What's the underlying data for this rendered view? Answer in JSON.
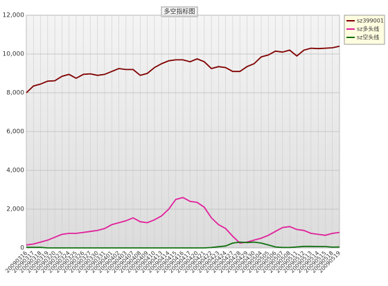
{
  "chart_data": {
    "type": "line",
    "title": "多空指标图",
    "categories": [
      "20090316",
      "20090317",
      "20090318",
      "20090319",
      "20090320",
      "20090323",
      "20090324",
      "20090325",
      "20090326",
      "20090327",
      "20090330",
      "20090331",
      "20090401",
      "20090402",
      "20090403",
      "20090407",
      "20090408",
      "20090409",
      "20090410",
      "20090413",
      "20090414",
      "20090415",
      "20090416",
      "20090417",
      "20090420",
      "20090421",
      "20090422",
      "20090423",
      "20090424",
      "20090427",
      "20090428",
      "20090429",
      "20090430",
      "20090504",
      "20090505",
      "20090506",
      "20090507",
      "20090508",
      "20090511",
      "20090512",
      "20090513",
      "20090514",
      "20090515",
      "20090518",
      "20090519"
    ],
    "series": [
      {
        "name": "sz399001",
        "color": "#800000",
        "values": [
          8000,
          8350,
          8450,
          8600,
          8620,
          8850,
          8950,
          8750,
          8950,
          8980,
          8900,
          8950,
          9100,
          9250,
          9200,
          9200,
          8900,
          9000,
          9300,
          9500,
          9650,
          9700,
          9700,
          9600,
          9750,
          9600,
          9250,
          9350,
          9300,
          9100,
          9100,
          9350,
          9500,
          9850,
          9950,
          10150,
          10100,
          10200,
          9900,
          10200,
          10300,
          10280,
          10300,
          10320,
          10400
        ]
      },
      {
        "name": "sz多头线",
        "color": "#e0209a",
        "values": [
          150,
          200,
          300,
          400,
          550,
          700,
          750,
          750,
          800,
          850,
          900,
          1000,
          1200,
          1300,
          1400,
          1550,
          1350,
          1300,
          1450,
          1650,
          2000,
          2500,
          2600,
          2400,
          2350,
          2100,
          1550,
          1200,
          1000,
          600,
          250,
          300,
          400,
          500,
          650,
          850,
          1050,
          1100,
          950,
          900,
          750,
          700,
          650,
          750,
          800
        ]
      },
      {
        "name": "sz空头线",
        "color": "#107010",
        "values": [
          30,
          30,
          30,
          0,
          0,
          0,
          0,
          0,
          0,
          0,
          0,
          0,
          0,
          0,
          0,
          0,
          0,
          0,
          0,
          0,
          0,
          0,
          0,
          0,
          0,
          0,
          20,
          60,
          100,
          250,
          300,
          280,
          300,
          250,
          150,
          50,
          20,
          20,
          50,
          80,
          80,
          70,
          70,
          40,
          50
        ]
      }
    ],
    "ylim": [
      0,
      12000
    ],
    "yticks": [
      0,
      {
        "value": 2000,
        "label": "2,000"
      },
      {
        "value": 4000,
        "label": "4,000"
      },
      {
        "value": 6000,
        "label": "6,000"
      },
      {
        "value": 8000,
        "label": "8,000"
      },
      {
        "value": 10000,
        "label": "10,000"
      },
      {
        "value": 12000,
        "label": "12,000"
      }
    ],
    "grid": true
  }
}
